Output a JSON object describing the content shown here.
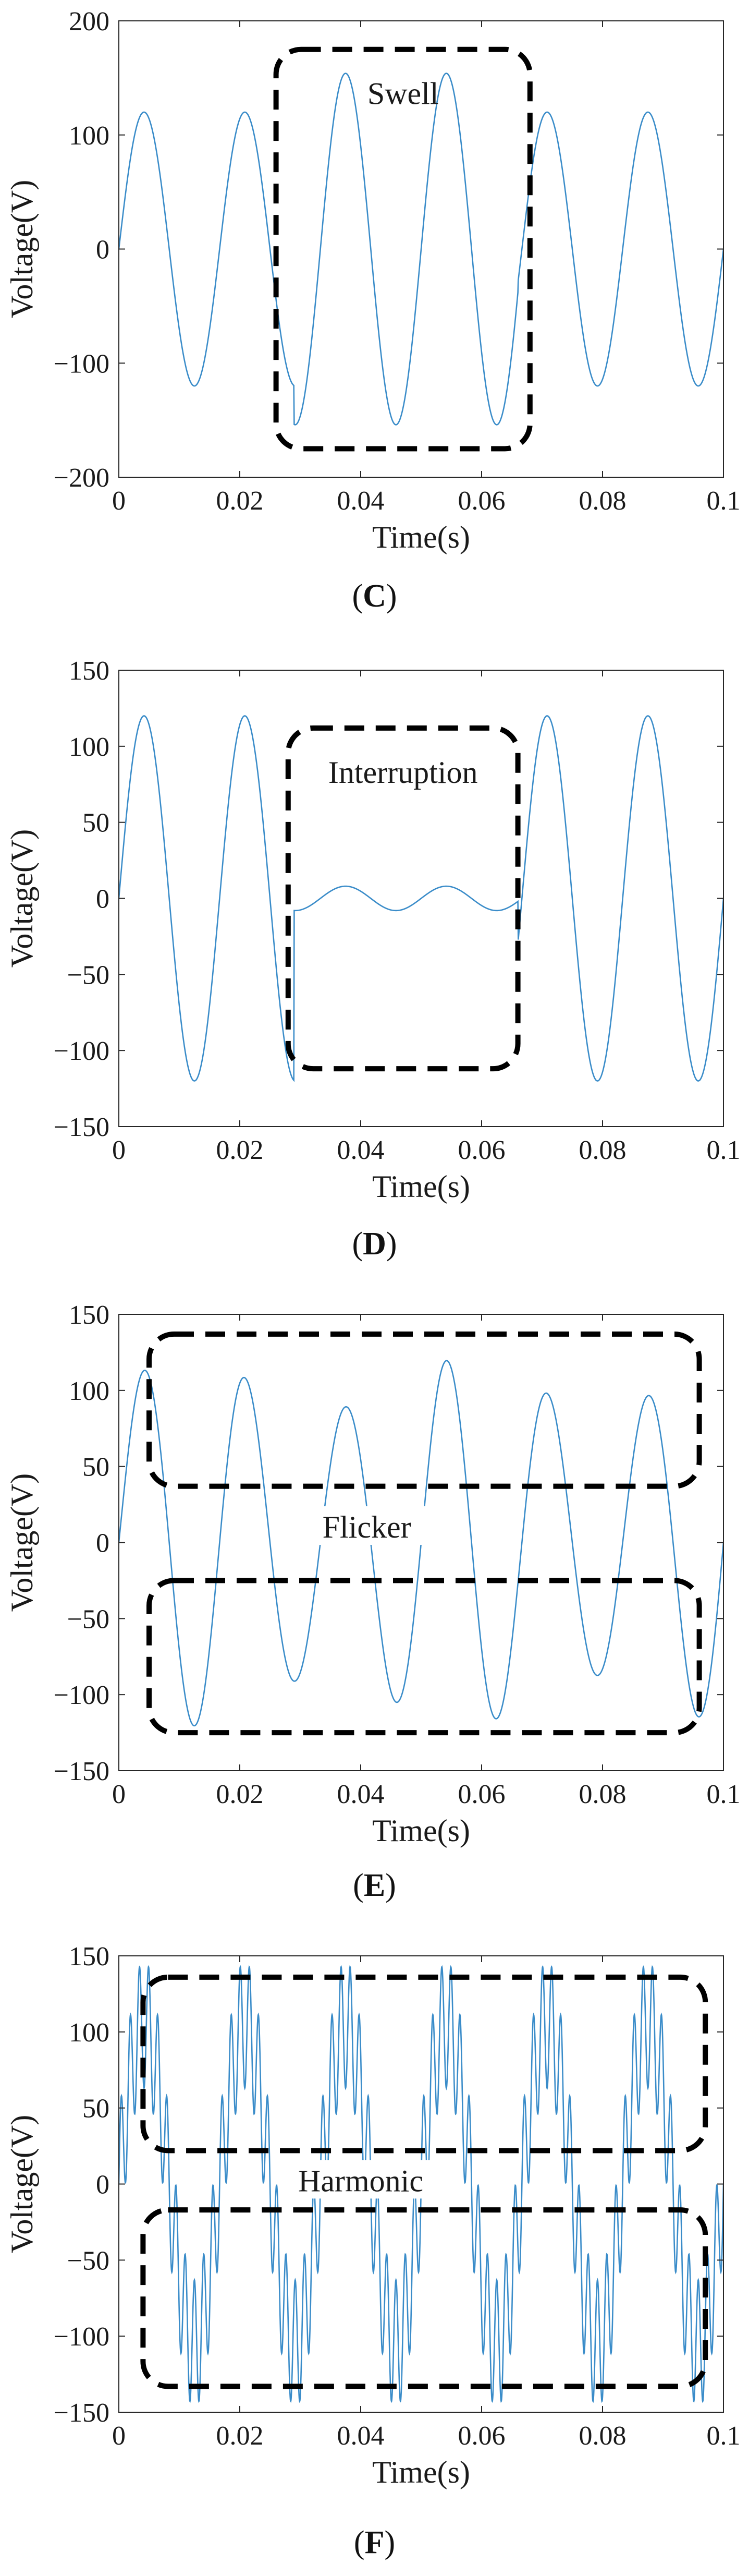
{
  "figure": {
    "panels": [
      {
        "caption_open": "(",
        "caption_letter": "C",
        "caption_close": ")",
        "annotations": [
          {
            "label": "Swell"
          }
        ]
      },
      {
        "caption_open": "(",
        "caption_letter": "D",
        "caption_close": ")",
        "annotations": [
          {
            "label": "Interruption"
          }
        ]
      },
      {
        "caption_open": "(",
        "caption_letter": "E",
        "caption_close": ")",
        "annotations": [
          {
            "label": "Flicker"
          }
        ]
      },
      {
        "caption_open": "(",
        "caption_letter": "F",
        "caption_close": ")",
        "annotations": [
          {
            "label": "Harmonic"
          }
        ]
      }
    ]
  },
  "colors": {
    "signal": "#3a8cc9",
    "axis": "#262626",
    "box": "#000000"
  },
  "chart_data": [
    {
      "type": "line",
      "title": "",
      "xlabel": "Time(s)",
      "ylabel": "Voltage(V)",
      "xlim": [
        0,
        0.1
      ],
      "ylim": [
        -200,
        200
      ],
      "xticks": [
        0,
        0.02,
        0.04,
        0.06,
        0.08,
        0.1
      ],
      "xtick_labels": [
        "0",
        "0.02",
        "0.04",
        "0.06",
        "0.08",
        "0.1"
      ],
      "yticks": [
        -200,
        -100,
        0,
        100,
        200
      ],
      "ytick_labels": [
        "-200",
        "-100",
        "0",
        "100",
        "200"
      ],
      "signal": {
        "kind": "swell",
        "frequency_hz": 60,
        "amplitude": 120,
        "event_amplitude": 154,
        "event_start": 0.029,
        "event_end": 0.066
      },
      "annotation_regions": [
        {
          "label": "Swell",
          "x": [
            0.026,
            0.068
          ],
          "y": [
            -175,
            175
          ]
        }
      ]
    },
    {
      "type": "line",
      "title": "",
      "xlabel": "Time(s)",
      "ylabel": "Voltage(V)",
      "xlim": [
        0,
        0.1
      ],
      "ylim": [
        -150,
        150
      ],
      "xticks": [
        0,
        0.02,
        0.04,
        0.06,
        0.08,
        0.1
      ],
      "xtick_labels": [
        "0",
        "0.02",
        "0.04",
        "0.06",
        "0.08",
        "0.1"
      ],
      "yticks": [
        -150,
        -100,
        -50,
        0,
        50,
        100,
        150
      ],
      "ytick_labels": [
        "-150",
        "-100",
        "-50",
        "0",
        "50",
        "100",
        "150"
      ],
      "signal": {
        "kind": "interruption",
        "frequency_hz": 60,
        "amplitude": 120,
        "event_amplitude": 8,
        "event_start": 0.029,
        "event_end": 0.066
      },
      "annotation_regions": [
        {
          "label": "Interruption",
          "x": [
            0.028,
            0.066
          ],
          "y": [
            -112,
            112
          ]
        }
      ]
    },
    {
      "type": "line",
      "title": "",
      "xlabel": "Time(s)",
      "ylabel": "Voltage(V)",
      "xlim": [
        0,
        0.1
      ],
      "ylim": [
        -150,
        150
      ],
      "xticks": [
        0,
        0.02,
        0.04,
        0.06,
        0.08,
        0.1
      ],
      "xtick_labels": [
        "0",
        "0.02",
        "0.04",
        "0.06",
        "0.08",
        "0.1"
      ],
      "yticks": [
        -150,
        -100,
        -50,
        0,
        50,
        100,
        150
      ],
      "ytick_labels": [
        "-150",
        "-100",
        "-50",
        "0",
        "50",
        "100",
        "150"
      ],
      "signal": {
        "kind": "flicker",
        "frequency_hz": 60,
        "amplitude": 104,
        "modulation_depth": 0.16,
        "modulation_hz": 22
      },
      "annotation_regions": [
        {
          "label": "",
          "x": [
            0.005,
            0.096
          ],
          "y": [
            37,
            137
          ]
        },
        {
          "label": "",
          "x": [
            0.005,
            0.096
          ],
          "y": [
            -125,
            -25
          ]
        }
      ],
      "annotation_label": {
        "label": "Flicker",
        "x": 0.041,
        "y": 6
      }
    },
    {
      "type": "line",
      "title": "",
      "xlabel": "Time(s)",
      "ylabel": "Voltage(V)",
      "xlim": [
        0,
        0.1
      ],
      "ylim": [
        -150,
        150
      ],
      "xticks": [
        0,
        0.02,
        0.04,
        0.06,
        0.08,
        0.1
      ],
      "xtick_labels": [
        "0",
        "0.02",
        "0.04",
        "0.06",
        "0.08",
        "0.1"
      ],
      "yticks": [
        -150,
        -100,
        -50,
        0,
        50,
        100,
        150
      ],
      "ytick_labels": [
        "-150",
        "-100",
        "-50",
        "0",
        "50",
        "100",
        "150"
      ],
      "signal": {
        "kind": "harmonic",
        "frequency_hz": 60,
        "amplitude": 105,
        "harmonic_order": 11,
        "harmonic_amplitude": 42
      },
      "annotation_regions": [
        {
          "label": "",
          "x": [
            0.004,
            0.097
          ],
          "y": [
            22,
            136
          ]
        },
        {
          "label": "",
          "x": [
            0.004,
            0.097
          ],
          "y": [
            -133,
            -17
          ]
        }
      ],
      "annotation_label": {
        "label": "Harmonic",
        "x": 0.04,
        "y": -2
      }
    }
  ]
}
